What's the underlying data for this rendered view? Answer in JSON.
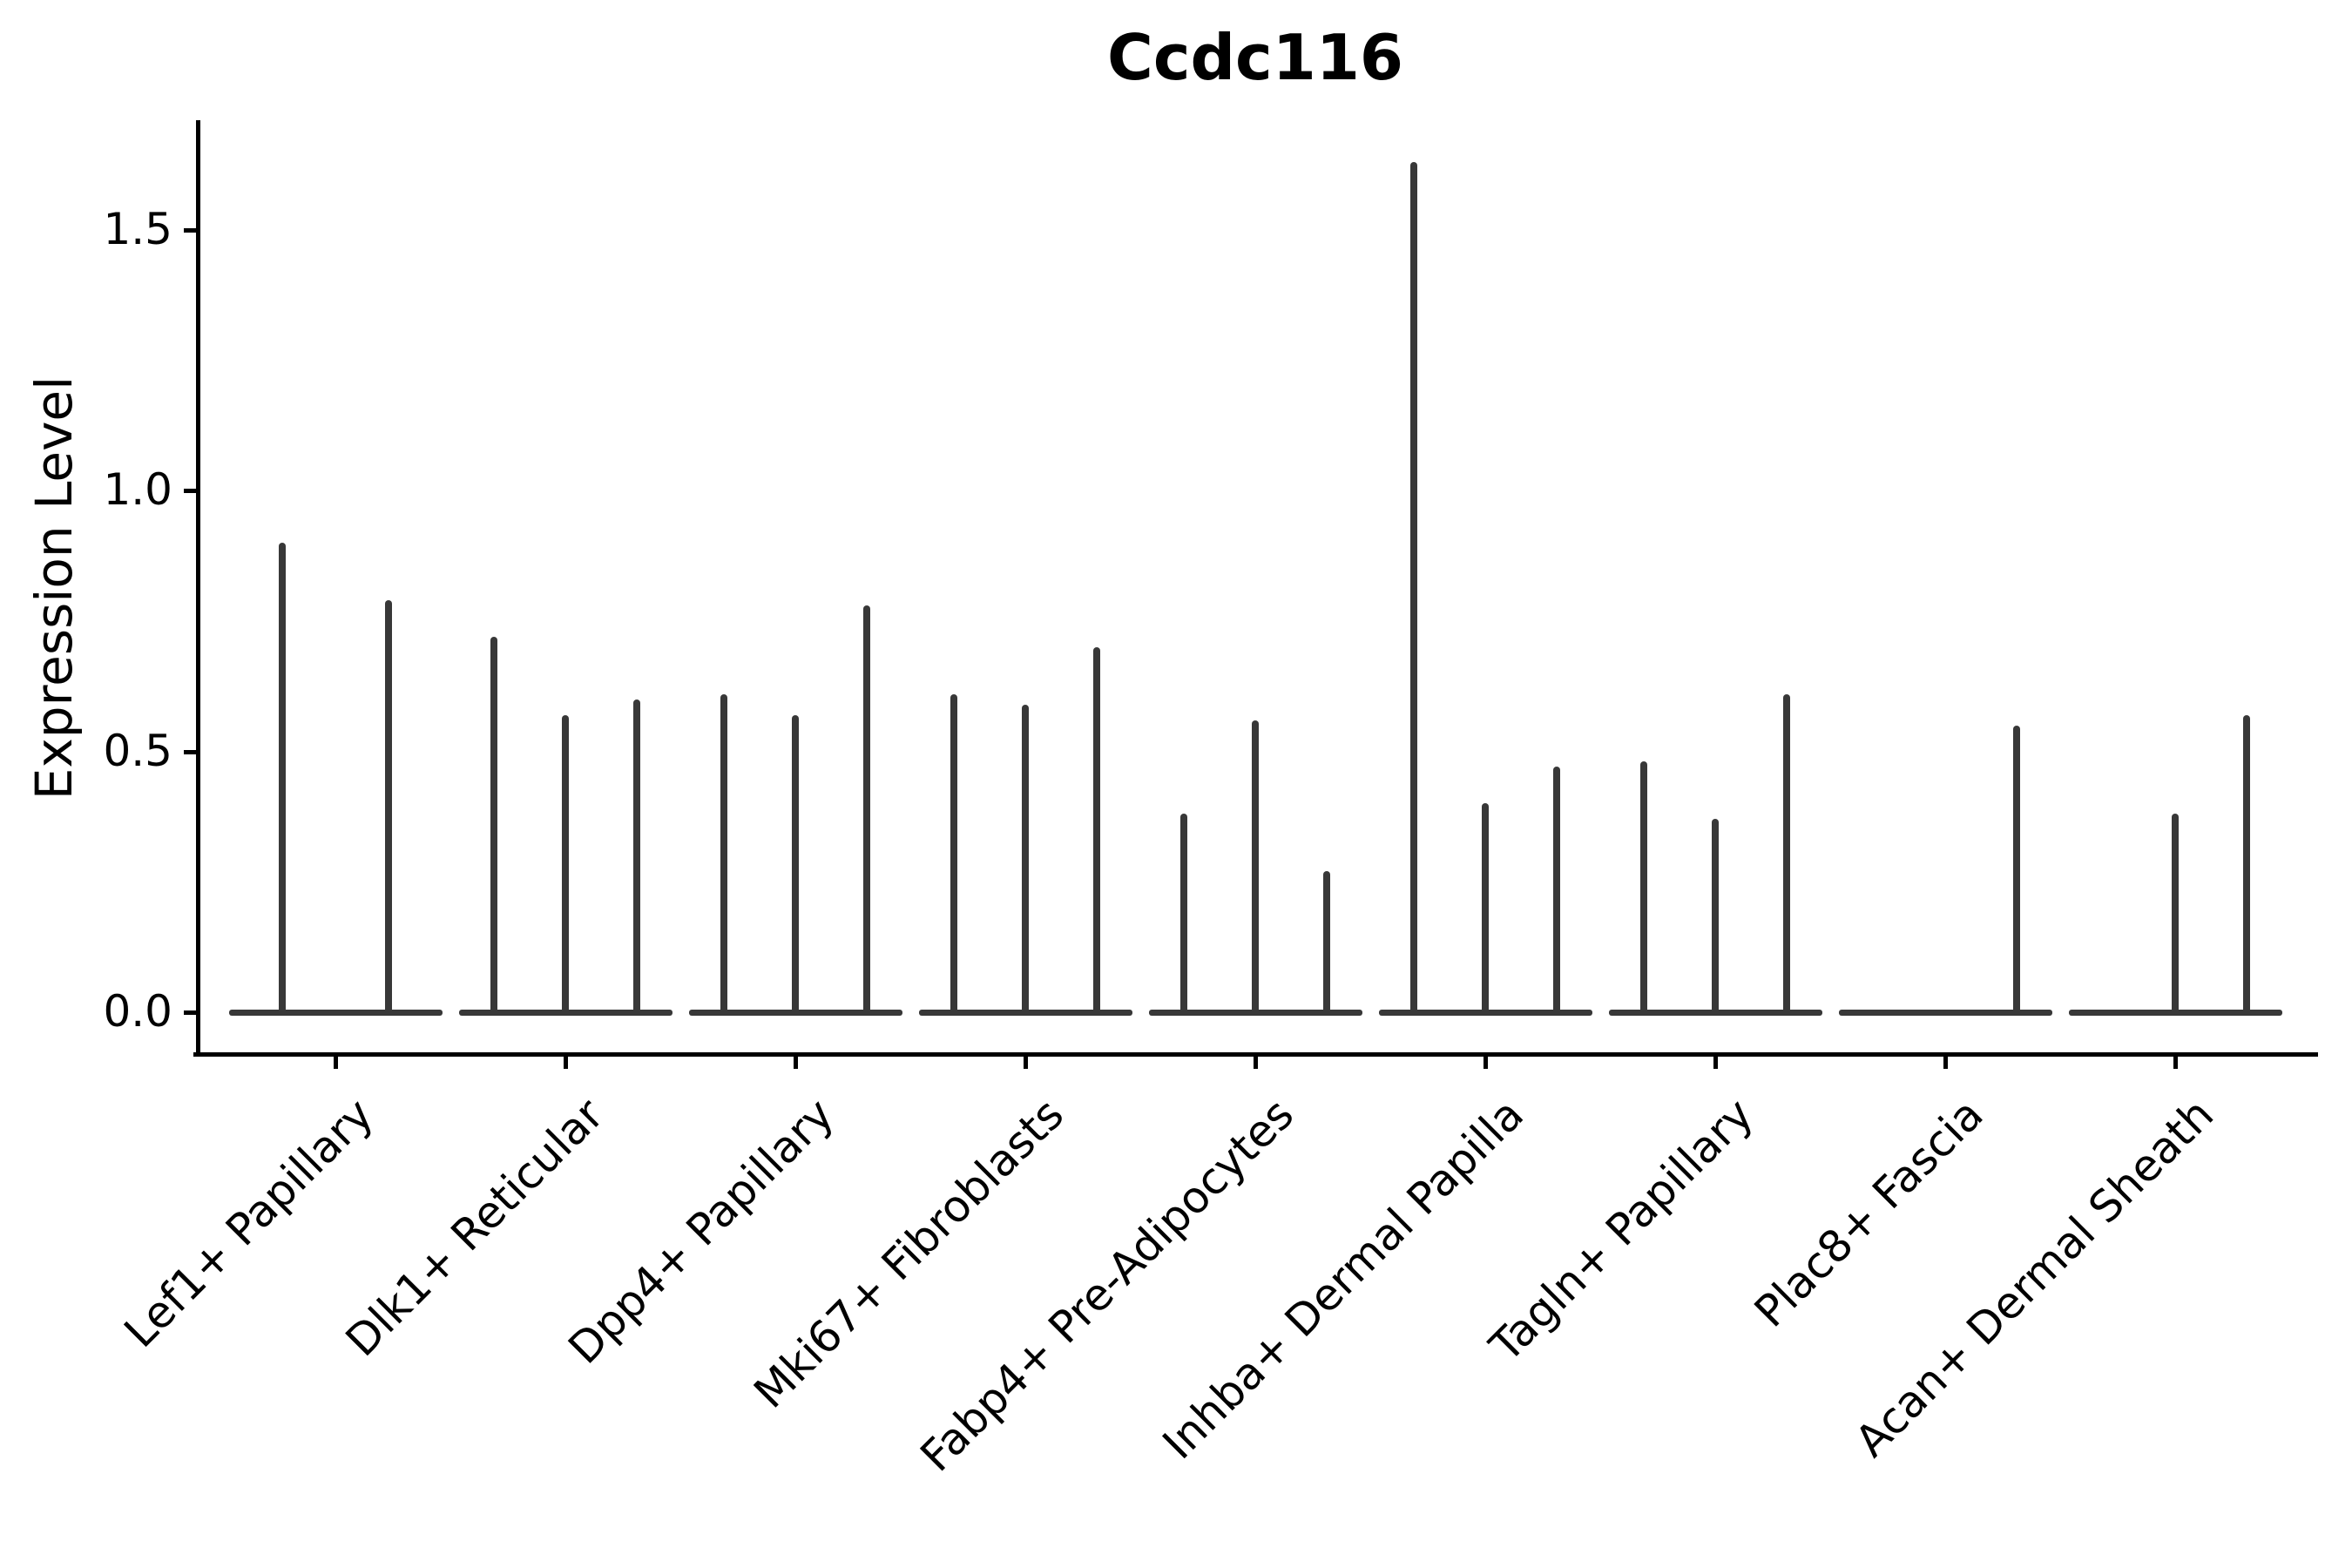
{
  "figure": {
    "title": "Ccdc116"
  },
  "chart_data": {
    "type": "violin",
    "title": "Ccdc116",
    "xlabel": "",
    "ylabel": "Expression Level",
    "ytick_labels": [
      "0.0",
      "0.5",
      "1.0",
      "1.5"
    ],
    "ytick_values": [
      0.0,
      0.5,
      1.0,
      1.5
    ],
    "ylim": [
      0,
      1.71
    ],
    "grid": false,
    "legend_position": "none",
    "categories": [
      "Lef1+ Papillary",
      "Dlk1+ Reticular",
      "Dpp4+ Papillary",
      "Mki67+ Fibroblasts",
      "Fabp4+ Pre-Adipocytes",
      "Inhba+ Dermal Papilla",
      "Tagln+ Papillary",
      "Plac8+ Fascia",
      "Acan+ Dermal Sheath"
    ],
    "groups": [
      {
        "category": "Lef1+ Papillary",
        "violin_peaks": [
          0.9,
          0.79
        ]
      },
      {
        "category": "Dlk1+ Reticular",
        "violin_peaks": [
          0.72,
          0.57,
          0.6
        ]
      },
      {
        "category": "Dpp4+ Papillary",
        "violin_peaks": [
          0.61,
          0.57,
          0.78
        ]
      },
      {
        "category": "Mki67+ Fibroblasts",
        "violin_peaks": [
          0.61,
          0.59,
          0.7
        ]
      },
      {
        "category": "Fabp4+ Pre-Adipocytes",
        "violin_peaks": [
          0.38,
          0.56,
          0.27
        ]
      },
      {
        "category": "Inhba+ Dermal Papilla",
        "violin_peaks": [
          1.63,
          0.4,
          0.47
        ]
      },
      {
        "category": "Tagln+ Papillary",
        "violin_peaks": [
          0.48,
          0.37,
          0.61
        ]
      },
      {
        "category": "Plac8+ Fascia",
        "violin_peaks": [
          0.0,
          0.0,
          0.55
        ]
      },
      {
        "category": "Acan+ Dermal Sheath",
        "violin_peaks": [
          0.0,
          0.38,
          0.57
        ]
      }
    ],
    "colors": {
      "violin_line": "#383838",
      "axis": "#000000",
      "text": "#000000",
      "background": "#ffffff"
    }
  }
}
